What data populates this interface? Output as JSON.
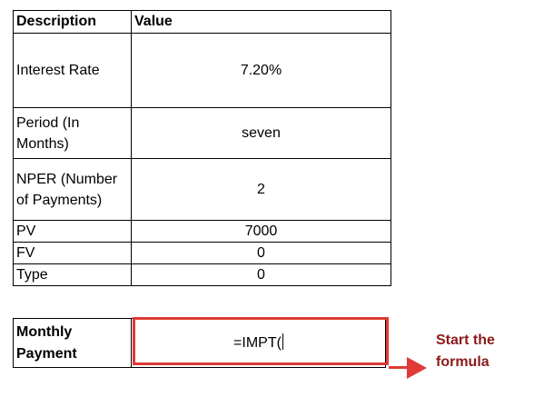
{
  "table": {
    "header": {
      "description": "Description",
      "value": "Value"
    },
    "rows": [
      {
        "label": "Interest Rate",
        "value": "7.20%"
      },
      {
        "label": "Period (In Months)",
        "value": "seven"
      },
      {
        "label": "NPER (Number of Payments)",
        "value": "2"
      },
      {
        "label": "PV",
        "value": "7000"
      },
      {
        "label": "FV",
        "value": "0"
      },
      {
        "label": "Type",
        "value": "0"
      }
    ]
  },
  "result": {
    "label": "Monthly Payment",
    "formula": "=IMPT("
  },
  "annotation": {
    "text": "Start the formula",
    "color": "#e03a36",
    "text_color": "#8b1a1a"
  }
}
